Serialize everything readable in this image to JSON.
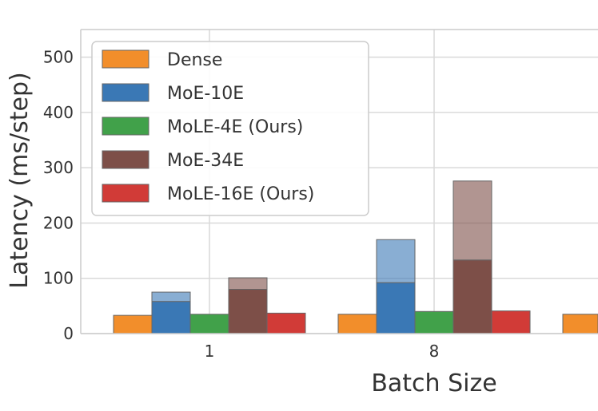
{
  "chart_data": {
    "type": "bar",
    "xlabel": "Batch Size",
    "ylabel": "Latency (ms/step)",
    "ylim": [
      0,
      550
    ],
    "yticks": [
      "0",
      "100",
      "200",
      "300",
      "400",
      "500"
    ],
    "categories": [
      "1",
      "8",
      ""
    ],
    "grid": true,
    "legend_position": "top-left",
    "series": [
      {
        "name": "Dense",
        "color": "#f28e2b",
        "values": [
          33,
          35,
          35
        ]
      },
      {
        "name": "MoE-10E",
        "color": "#3a78b5",
        "values": [
          58,
          92,
          null
        ],
        "values_upper": [
          75,
          170,
          null
        ]
      },
      {
        "name": "MoLE-4E (Ours)",
        "color": "#41a14a",
        "values": [
          35,
          40,
          null
        ]
      },
      {
        "name": "MoE-34E",
        "color": "#7d4f48",
        "values": [
          80,
          133,
          null
        ],
        "values_upper": [
          101,
          276,
          null
        ]
      },
      {
        "name": "MoLE-16E (Ours)",
        "color": "#d13b37",
        "values": [
          37,
          41,
          null
        ]
      }
    ]
  }
}
